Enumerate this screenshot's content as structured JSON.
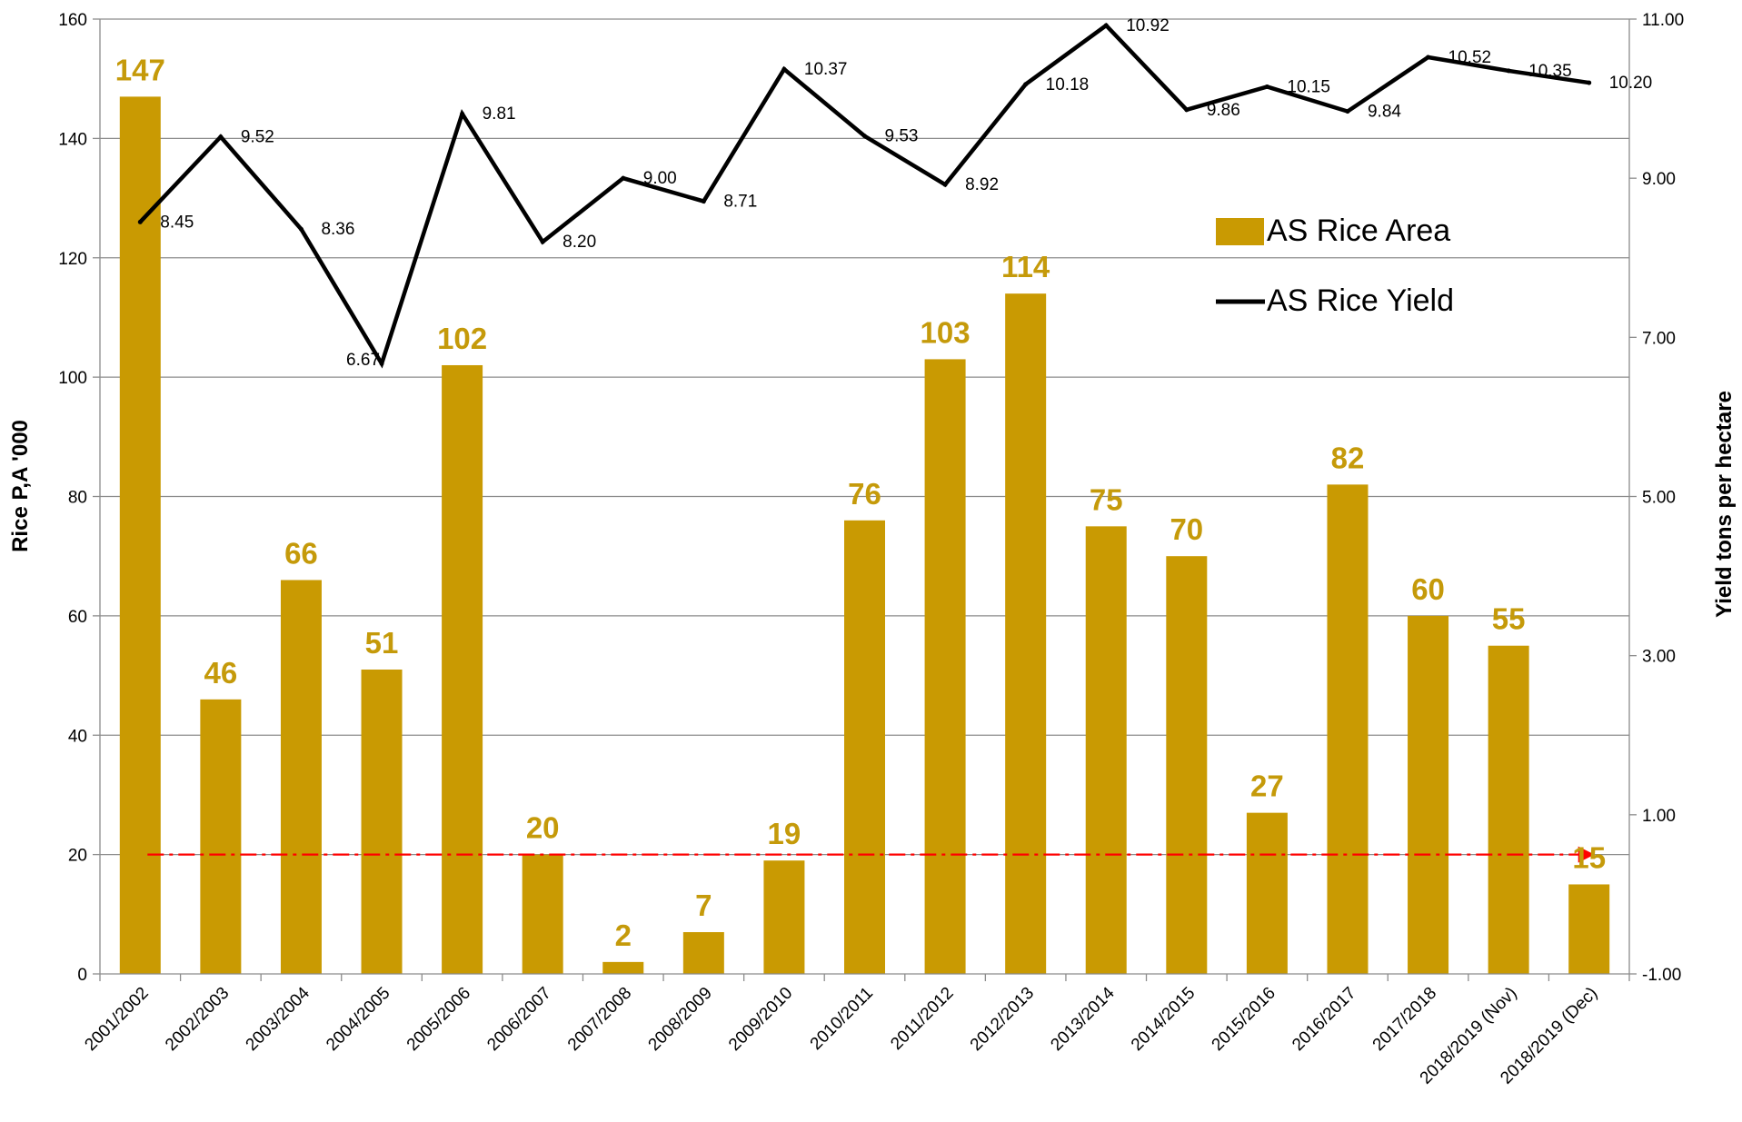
{
  "chart_data": {
    "type": "bar+line",
    "title": "",
    "categories": [
      "2001/2002",
      "2002/2003",
      "2003/2004",
      "2004/2005",
      "2005/2006",
      "2006/2007",
      "2007/2008",
      "2008/2009",
      "2009/2010",
      "2010/2011",
      "2011/2012",
      "2012/2013",
      "2013/2014",
      "2014/2015",
      "2015/2016",
      "2016/2017",
      "2017/2018",
      "2018/2019 (Nov)",
      "2018/2019 (Dec)"
    ],
    "series": [
      {
        "name": "AS Rice Area",
        "type": "bar",
        "axis": "left",
        "color": "#C99A02",
        "label_color": "#C59A0A",
        "values": [
          147,
          46,
          66,
          51,
          102,
          20,
          2,
          7,
          19,
          76,
          103,
          114,
          75,
          70,
          27,
          82,
          60,
          55,
          15
        ],
        "labels": [
          "147",
          "46",
          "66",
          "51",
          "102",
          "20",
          "2",
          "7",
          "19",
          "76",
          "103",
          "114",
          "75",
          "70",
          "27",
          "82",
          "60",
          "55",
          "15"
        ]
      },
      {
        "name": "AS Rice Yield",
        "type": "line",
        "axis": "right",
        "color": "#000000",
        "values": [
          8.45,
          9.52,
          8.36,
          6.67,
          9.81,
          8.2,
          9.0,
          8.71,
          10.37,
          9.53,
          8.92,
          10.18,
          10.92,
          9.86,
          10.15,
          9.84,
          10.52,
          10.35,
          10.2
        ],
        "labels": [
          "8.45",
          "9.52",
          "8.36",
          "6.67",
          "9.81",
          "8.20",
          "9.00",
          "8.71",
          "10.37",
          "9.53",
          "8.92",
          "10.18",
          "10.92",
          "9.86",
          "10.15",
          "9.84",
          "10.52",
          "10.35",
          "10.20"
        ]
      }
    ],
    "reference_line": {
      "value": 20,
      "axis": "left",
      "color": "#FF0000",
      "style": "dash-dot",
      "arrow": "right"
    },
    "ylabel": "Rice P,A  '000",
    "y2label": "Yield tons per hectare",
    "ylim": [
      0,
      160
    ],
    "y_ticks": [
      "0",
      "20",
      "40",
      "60",
      "80",
      "100",
      "120",
      "140",
      "160"
    ],
    "y2lim": [
      -1,
      11
    ],
    "y2_ticks": [
      "-1.00",
      "1.00",
      "3.00",
      "5.00",
      "7.00",
      "9.00",
      "11.00"
    ],
    "grid": true,
    "legend_position": "right-upper"
  }
}
